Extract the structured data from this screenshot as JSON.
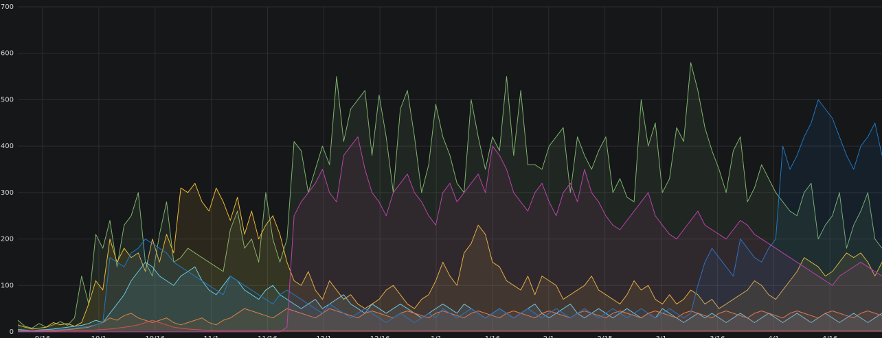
{
  "chart_data": {
    "type": "area",
    "title": "",
    "xlabel": "",
    "ylabel": "",
    "ylim": [
      0,
      700
    ],
    "yticks": [
      "0",
      "100",
      "200",
      "300",
      "400",
      "500",
      "600",
      "700"
    ],
    "xticks": [
      "9/16",
      "10/1",
      "10/16",
      "11/1",
      "11/16",
      "12/1",
      "12/16",
      "1/1",
      "1/16",
      "2/1",
      "2/15",
      "3/1",
      "3/16",
      "4/1",
      "4/16"
    ],
    "grid": true,
    "legend": "none",
    "series": [
      {
        "color": "#7eb26d",
        "fill": "#7eb26d",
        "values": [
          25,
          12,
          8,
          18,
          10,
          15,
          22,
          14,
          30,
          120,
          60,
          210,
          180,
          240,
          140,
          230,
          250,
          300,
          150,
          120,
          210,
          280,
          150,
          160,
          180,
          170,
          160,
          150,
          140,
          130,
          220,
          260,
          180,
          200,
          150,
          300,
          200,
          150,
          200,
          410,
          390,
          300,
          350,
          400,
          360,
          550,
          410,
          480,
          500,
          520,
          380,
          510,
          420,
          300,
          480,
          520,
          420,
          300,
          360,
          490,
          420,
          380,
          320,
          300,
          500,
          420,
          350,
          420,
          390,
          550,
          380,
          520,
          360,
          360,
          350,
          400,
          420,
          440,
          300,
          420,
          380,
          350,
          390,
          420,
          300,
          330,
          290,
          280,
          500,
          400,
          450,
          300,
          330,
          440,
          410,
          580,
          520,
          440,
          390,
          350,
          300,
          390,
          420,
          280,
          310,
          360,
          330,
          300,
          280,
          260,
          250,
          300,
          320,
          200,
          230,
          250,
          300,
          180,
          230,
          260,
          300,
          200,
          180
        ]
      },
      {
        "color": "#eab839",
        "fill": "#eab839",
        "values": [
          15,
          10,
          6,
          8,
          10,
          20,
          15,
          18,
          12,
          20,
          60,
          110,
          90,
          200,
          150,
          180,
          160,
          170,
          130,
          200,
          150,
          210,
          170,
          310,
          300,
          320,
          280,
          260,
          310,
          280,
          240,
          290,
          210,
          260,
          200,
          230,
          250,
          210,
          150,
          110,
          100,
          130,
          90,
          70,
          110,
          90,
          70,
          80,
          60,
          50,
          60,
          70,
          90,
          100,
          80,
          60,
          50,
          70,
          80,
          110,
          150,
          120,
          100,
          170,
          190,
          230,
          210,
          150,
          140,
          110,
          100,
          90,
          120,
          80,
          120,
          110,
          100,
          70,
          80,
          90,
          100,
          120,
          90,
          80,
          70,
          60,
          80,
          110,
          90,
          100,
          70,
          60,
          80,
          60,
          70,
          90,
          80,
          60,
          70,
          50,
          60,
          70,
          80,
          90,
          110,
          100,
          80,
          70,
          90,
          110,
          130,
          160,
          150,
          140,
          120,
          130,
          150,
          170,
          160,
          170,
          150,
          120,
          150
        ]
      },
      {
        "color": "#6ed0e0",
        "fill": "#6ed0e0",
        "values": [
          5,
          4,
          3,
          4,
          5,
          6,
          8,
          10,
          12,
          14,
          18,
          25,
          20,
          40,
          60,
          80,
          110,
          130,
          150,
          140,
          120,
          110,
          100,
          120,
          130,
          140,
          110,
          90,
          80,
          100,
          120,
          110,
          90,
          80,
          70,
          90,
          100,
          80,
          70,
          60,
          50,
          60,
          70,
          50,
          60,
          70,
          80,
          60,
          50,
          40,
          60,
          50,
          40,
          50,
          60,
          50,
          40,
          30,
          40,
          50,
          60,
          50,
          40,
          60,
          50,
          40,
          30,
          40,
          50,
          40,
          30,
          40,
          50,
          60,
          40,
          30,
          40,
          50,
          60,
          40,
          30,
          40,
          50,
          40,
          30,
          40,
          50,
          40,
          30,
          40,
          30,
          50,
          40,
          30,
          20,
          30,
          40,
          30,
          40,
          30,
          20,
          30,
          40,
          30,
          20,
          30,
          40,
          30,
          20,
          30,
          40,
          30,
          20,
          30,
          40,
          30,
          20,
          30,
          40,
          30,
          20,
          30,
          40
        ]
      },
      {
        "color": "#ef843c",
        "fill": "#ef843c",
        "values": [
          2,
          2,
          2,
          2,
          3,
          3,
          4,
          5,
          6,
          8,
          10,
          15,
          20,
          30,
          25,
          35,
          40,
          30,
          25,
          20,
          25,
          30,
          20,
          15,
          20,
          25,
          30,
          20,
          15,
          25,
          30,
          40,
          50,
          45,
          40,
          35,
          30,
          40,
          50,
          45,
          40,
          35,
          30,
          40,
          50,
          45,
          40,
          35,
          30,
          40,
          45,
          40,
          35,
          30,
          40,
          45,
          40,
          35,
          30,
          40,
          45,
          40,
          35,
          30,
          40,
          45,
          40,
          35,
          30,
          40,
          45,
          40,
          35,
          30,
          40,
          45,
          40,
          35,
          30,
          40,
          45,
          40,
          35,
          30,
          40,
          45,
          40,
          35,
          30,
          40,
          45,
          40,
          35,
          30,
          40,
          45,
          40,
          35,
          30,
          40,
          45,
          40,
          35,
          30,
          40,
          45,
          40,
          35,
          30,
          40,
          45,
          40,
          35,
          30,
          40,
          45,
          40,
          35,
          30,
          40,
          45,
          40,
          35
        ]
      },
      {
        "color": "#e24d42",
        "fill": "#e24d42",
        "values": [
          1,
          1,
          1,
          1,
          1,
          1,
          2,
          2,
          2,
          3,
          3,
          4,
          5,
          6,
          8,
          10,
          12,
          15,
          20,
          25,
          20,
          15,
          10,
          8,
          6,
          5,
          4,
          3,
          2,
          2,
          2,
          2,
          2,
          2,
          2,
          2,
          2,
          2,
          2,
          2,
          2,
          2,
          2,
          2,
          2,
          2,
          2,
          2,
          2,
          2,
          2,
          2,
          2,
          2,
          2,
          2,
          2,
          2,
          2,
          2,
          2,
          2,
          2,
          2,
          2,
          2,
          2,
          2,
          2,
          2,
          2,
          2,
          2,
          2,
          2,
          2,
          2,
          2,
          2,
          2,
          2,
          2,
          2,
          2,
          2,
          2,
          2,
          2,
          2,
          2,
          2,
          2,
          2,
          2,
          2,
          2,
          2,
          2,
          2,
          2,
          2,
          2,
          2,
          2,
          2,
          2,
          2,
          2,
          2,
          2,
          2,
          2,
          2,
          2,
          2,
          2,
          2,
          2,
          2,
          2,
          2,
          2,
          2
        ]
      },
      {
        "color": "#1f78c1",
        "fill": "#1f78c1",
        "values": [
          3,
          3,
          3,
          3,
          4,
          4,
          5,
          6,
          8,
          10,
          12,
          15,
          20,
          160,
          150,
          140,
          170,
          180,
          200,
          190,
          180,
          170,
          150,
          140,
          130,
          120,
          110,
          100,
          90,
          80,
          120,
          110,
          100,
          90,
          80,
          70,
          60,
          80,
          90,
          80,
          70,
          60,
          50,
          40,
          60,
          50,
          40,
          30,
          40,
          50,
          40,
          30,
          20,
          30,
          40,
          30,
          20,
          30,
          40,
          30,
          50,
          40,
          30,
          40,
          50,
          40,
          30,
          40,
          50,
          40,
          30,
          40,
          50,
          40,
          30,
          40,
          50,
          40,
          30,
          40,
          50,
          40,
          30,
          40,
          50,
          40,
          30,
          40,
          50,
          40,
          30,
          40,
          50,
          40,
          30,
          40,
          100,
          150,
          180,
          160,
          140,
          120,
          200,
          180,
          160,
          150,
          180,
          200,
          400,
          350,
          380,
          420,
          450,
          500,
          480,
          460,
          420,
          380,
          350,
          400,
          420,
          450,
          380
        ]
      },
      {
        "color": "#ba43a9",
        "fill": "#ba43a9",
        "values": [
          0,
          0,
          0,
          0,
          0,
          0,
          0,
          0,
          0,
          0,
          0,
          0,
          0,
          0,
          0,
          0,
          0,
          0,
          0,
          0,
          0,
          0,
          0,
          0,
          0,
          0,
          0,
          0,
          0,
          0,
          0,
          0,
          0,
          0,
          0,
          0,
          0,
          0,
          10,
          250,
          280,
          300,
          320,
          350,
          300,
          280,
          380,
          400,
          420,
          350,
          300,
          280,
          250,
          300,
          320,
          340,
          300,
          280,
          250,
          230,
          300,
          320,
          280,
          300,
          320,
          340,
          300,
          400,
          380,
          350,
          300,
          280,
          260,
          300,
          320,
          280,
          250,
          300,
          320,
          280,
          350,
          300,
          280,
          250,
          230,
          220,
          240,
          260,
          280,
          300,
          250,
          230,
          210,
          200,
          220,
          240,
          260,
          230,
          220,
          210,
          200,
          220,
          240,
          230,
          210,
          200,
          190,
          180,
          170,
          160,
          150,
          140,
          130,
          120,
          110,
          100,
          120,
          130,
          140,
          150,
          140,
          130,
          120
        ]
      }
    ]
  }
}
